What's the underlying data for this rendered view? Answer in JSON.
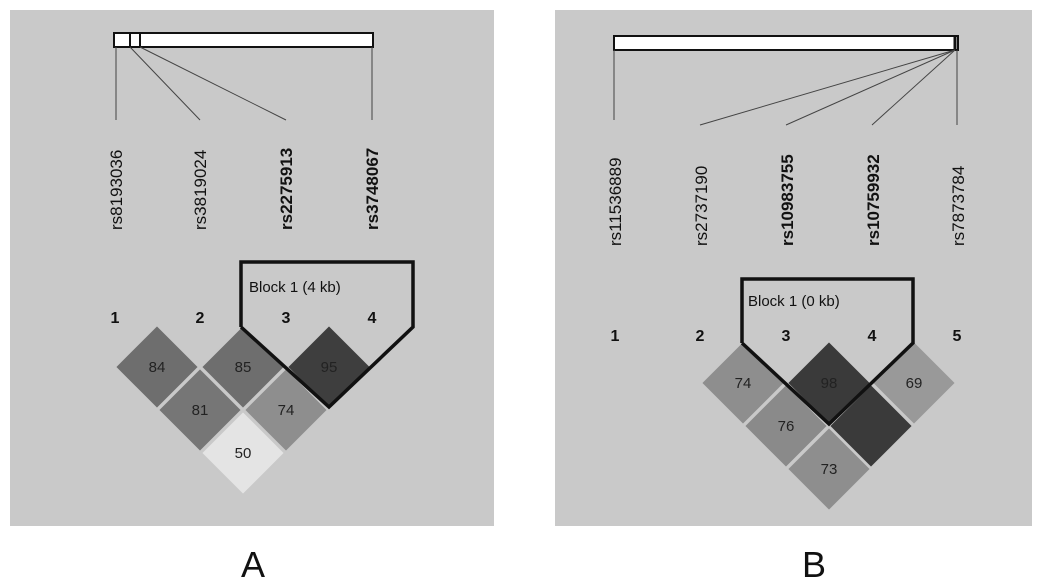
{
  "panels": [
    {
      "label": "A",
      "block_label": "Block 1 (4 kb)",
      "markers": [
        {
          "num": "1",
          "name": "rs8193036",
          "bold": false
        },
        {
          "num": "2",
          "name": "rs3819024",
          "bold": false
        },
        {
          "num": "3",
          "name": "rs2275913",
          "bold": true
        },
        {
          "num": "4",
          "name": "rs3748067",
          "bold": true
        }
      ],
      "cells": [
        {
          "i": 1,
          "j": 2,
          "value": "84",
          "color": "#6e6e6e"
        },
        {
          "i": 2,
          "j": 3,
          "value": "85",
          "color": "#6e6e6e"
        },
        {
          "i": 3,
          "j": 4,
          "value": "95",
          "color": "#3e3e3e"
        },
        {
          "i": 1,
          "j": 3,
          "value": "81",
          "color": "#767676"
        },
        {
          "i": 2,
          "j": 4,
          "value": "74",
          "color": "#8e8e8e"
        },
        {
          "i": 1,
          "j": 4,
          "value": "50",
          "color": "#e4e4e4"
        }
      ]
    },
    {
      "label": "B",
      "block_label": "Block 1 (0 kb)",
      "markers": [
        {
          "num": "1",
          "name": "rs11536889",
          "bold": false
        },
        {
          "num": "2",
          "name": "rs2737190",
          "bold": false
        },
        {
          "num": "3",
          "name": "rs10983755",
          "bold": true
        },
        {
          "num": "4",
          "name": "rs10759932",
          "bold": true
        },
        {
          "num": "5",
          "name": "rs7873784",
          "bold": false
        }
      ],
      "cells": [
        {
          "i": 2,
          "j": 3,
          "value": "74",
          "color": "#8e8e8e"
        },
        {
          "i": 3,
          "j": 4,
          "value": "98",
          "color": "#3a3a3a"
        },
        {
          "i": 4,
          "j": 5,
          "value": "69",
          "color": "#999999"
        },
        {
          "i": 2,
          "j": 4,
          "value": "76",
          "color": "#8a8a8a"
        },
        {
          "i": 3,
          "j": 5,
          "value": "",
          "color": "#3a3a3a"
        },
        {
          "i": 2,
          "j": 5,
          "value": "73",
          "color": "#8e8e8e"
        }
      ]
    }
  ],
  "colors": {
    "panel_bg": "#c9c9c9",
    "cell_border": "#c9c9c9",
    "line": "#444444",
    "block_outline": "#111111"
  }
}
